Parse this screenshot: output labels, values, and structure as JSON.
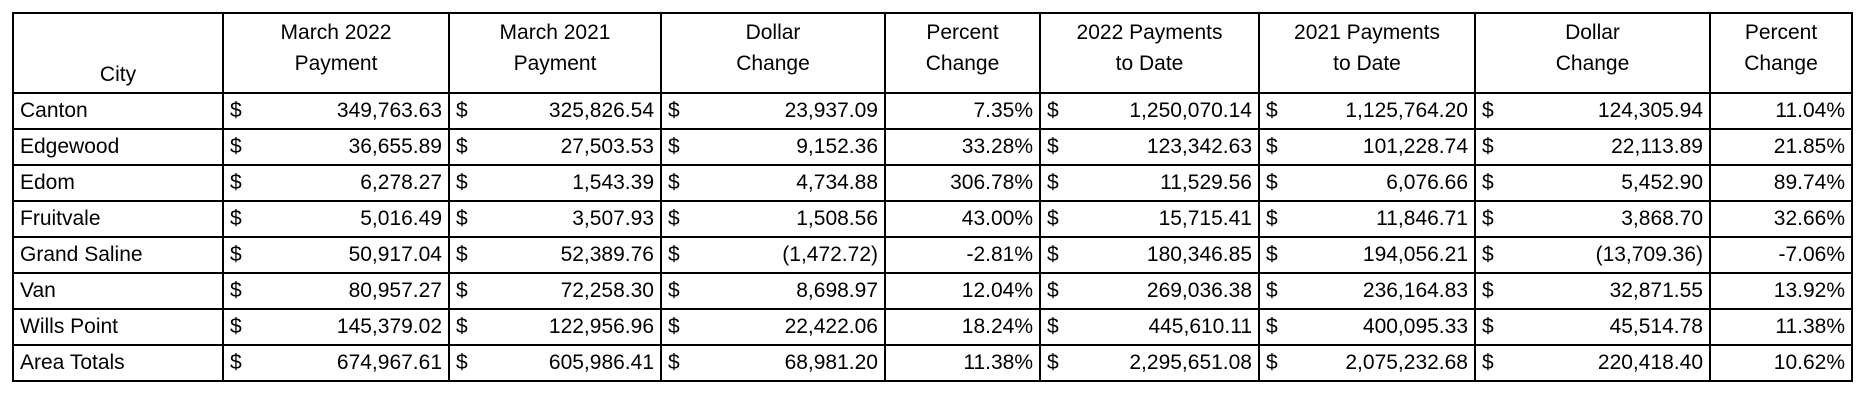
{
  "table": {
    "header": [
      [
        "City"
      ],
      [
        "March 2022",
        "Payment"
      ],
      [
        "March 2021",
        "Payment"
      ],
      [
        "Dollar",
        "Change"
      ],
      [
        "Percent",
        "Change"
      ],
      [
        "2022 Payments",
        "to Date"
      ],
      [
        "2021 Payments",
        "to Date"
      ],
      [
        "Dollar",
        "Change"
      ],
      [
        "Percent",
        "Change"
      ]
    ],
    "currency": "$",
    "rows": [
      [
        "Canton",
        "349,763.63",
        "325,826.54",
        "23,937.09",
        "7.35%",
        "1,250,070.14",
        "1,125,764.20",
        "124,305.94",
        "11.04%"
      ],
      [
        "Edgewood",
        "36,655.89",
        "27,503.53",
        "9,152.36",
        "33.28%",
        "123,342.63",
        "101,228.74",
        "22,113.89",
        "21.85%"
      ],
      [
        "Edom",
        "6,278.27",
        "1,543.39",
        "4,734.88",
        "306.78%",
        "11,529.56",
        "6,076.66",
        "5,452.90",
        "89.74%"
      ],
      [
        "Fruitvale",
        "5,016.49",
        "3,507.93",
        "1,508.56",
        "43.00%",
        "15,715.41",
        "11,846.71",
        "3,868.70",
        "32.66%"
      ],
      [
        "Grand Saline",
        "50,917.04",
        "52,389.76",
        "(1,472.72)",
        "-2.81%",
        "180,346.85",
        "194,056.21",
        "(13,709.36)",
        "-7.06%"
      ],
      [
        "Van",
        "80,957.27",
        "72,258.30",
        "8,698.97",
        "12.04%",
        "269,036.38",
        "236,164.83",
        "32,871.55",
        "13.92%"
      ],
      [
        "Wills Point",
        "145,379.02",
        "122,956.96",
        "22,422.06",
        "18.24%",
        "445,610.11",
        "400,095.33",
        "45,514.78",
        "11.38%"
      ],
      [
        "Area Totals",
        "674,967.61",
        "605,986.41",
        "68,981.20",
        "11.38%",
        "2,295,651.08",
        "2,075,232.68",
        "220,418.40",
        "10.62%"
      ]
    ]
  }
}
